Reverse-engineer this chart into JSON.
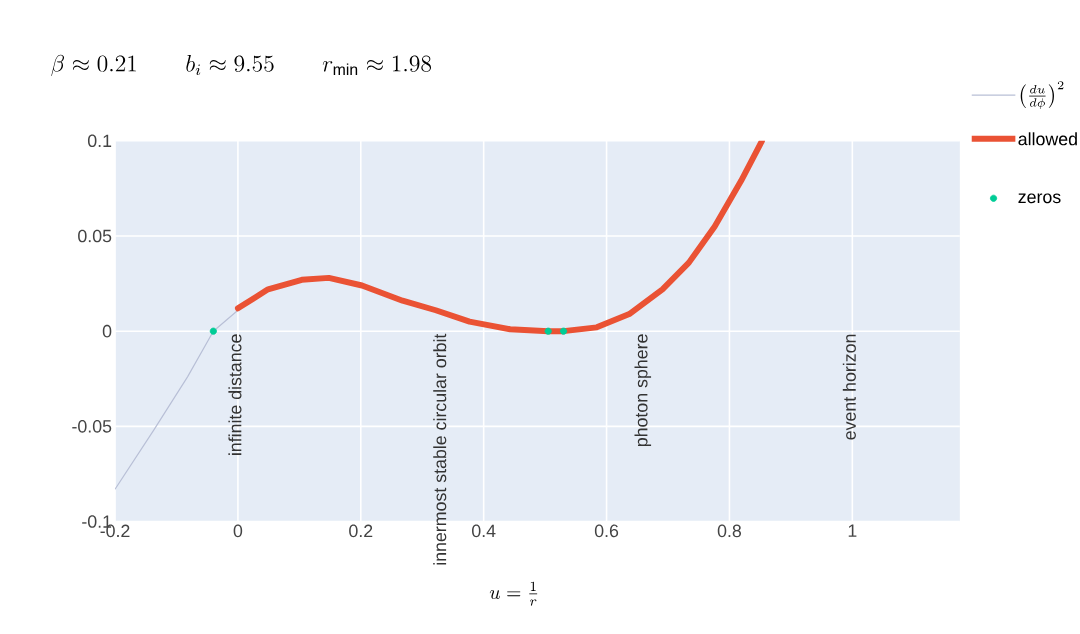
{
  "chart_data": {
    "type": "line",
    "title": "\\beta \\approx 0.21 \\qquad b_i \\approx 9.55 \\qquad r_{\\min} \\approx 1.98",
    "xlabel": "u = \\frac{1}{r}",
    "xlim": [
      -0.2,
      1.175
    ],
    "ylim": [
      -0.1,
      0.1
    ],
    "xticks": [
      -0.2,
      0,
      0.2,
      0.4,
      0.6,
      0.8,
      1
    ],
    "yticks": [
      -0.1,
      -0.05,
      0,
      0.05,
      0.1
    ],
    "grid": true,
    "legend": "right",
    "series": [
      {
        "name": "\\left(\\frac{du}{d\\phi}\\right)^2",
        "color": "#b8bfd6",
        "x": [
          -0.2,
          -0.137,
          -0.082,
          -0.04,
          0
        ],
        "values": [
          -0.083,
          -0.052,
          -0.024,
          0,
          0.011
        ]
      },
      {
        "name": "allowed",
        "color": "#ea5234",
        "x": [
          0,
          0.049,
          0.104,
          0.148,
          0.202,
          0.268,
          0.322,
          0.377,
          0.443,
          0.505,
          0.53,
          0.584,
          0.637,
          0.691,
          0.734,
          0.776,
          0.819,
          0.853
        ],
        "values": [
          0.012,
          0.022,
          0.027,
          0.028,
          0.024,
          0.016,
          0.011,
          0.005,
          0.001,
          0,
          0,
          0.002,
          0.009,
          0.022,
          0.036,
          0.055,
          0.079,
          0.1
        ]
      },
      {
        "name": "zeros",
        "type": "scatter",
        "color": "#00cc96",
        "marker": "circle",
        "x": [
          -0.04,
          0.505,
          0.53
        ],
        "values": [
          0,
          0,
          0
        ]
      }
    ],
    "annotations": [
      "infinite distance",
      "innermost stable circular orbit",
      "photon sphere",
      "event horizon"
    ]
  }
}
